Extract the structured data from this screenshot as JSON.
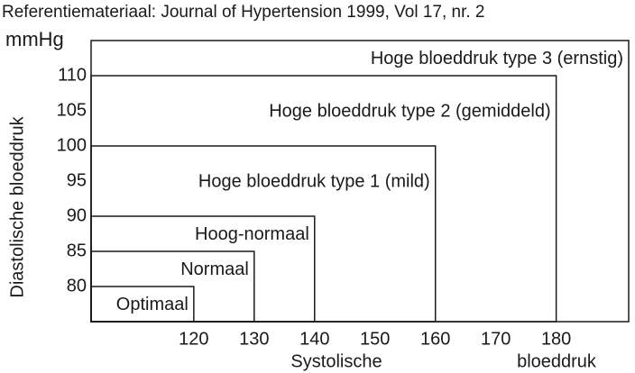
{
  "chart_data": {
    "type": "region",
    "title": "Referentiemateriaal: Journal of Hypertension 1999, Vol 17, nr. 2",
    "y_unit": "mmHg",
    "y_label": "Diastolische bloeddruk",
    "x_label_parts": [
      "Systolische",
      "bloeddruk"
    ],
    "categories": [
      "Optimaal",
      "Normaal",
      "Hoog-normaal",
      "Hoge bloeddruk type 1 (mild)",
      "Hoge bloeddruk type 2 (gemiddeld)",
      "Hoge bloeddruk type 3 (ernstig)"
    ],
    "x": [
      120,
      130,
      140,
      160,
      180,
      null
    ],
    "values": [
      80,
      85,
      90,
      100,
      110,
      null
    ],
    "color": "#1a1a1a",
    "xlim": [
      103,
      192
    ],
    "ylim": [
      75,
      115
    ],
    "xticks": [
      120,
      130,
      140,
      150,
      160,
      170,
      180
    ],
    "yticks": [
      80,
      85,
      90,
      95,
      100,
      105,
      110
    ]
  }
}
